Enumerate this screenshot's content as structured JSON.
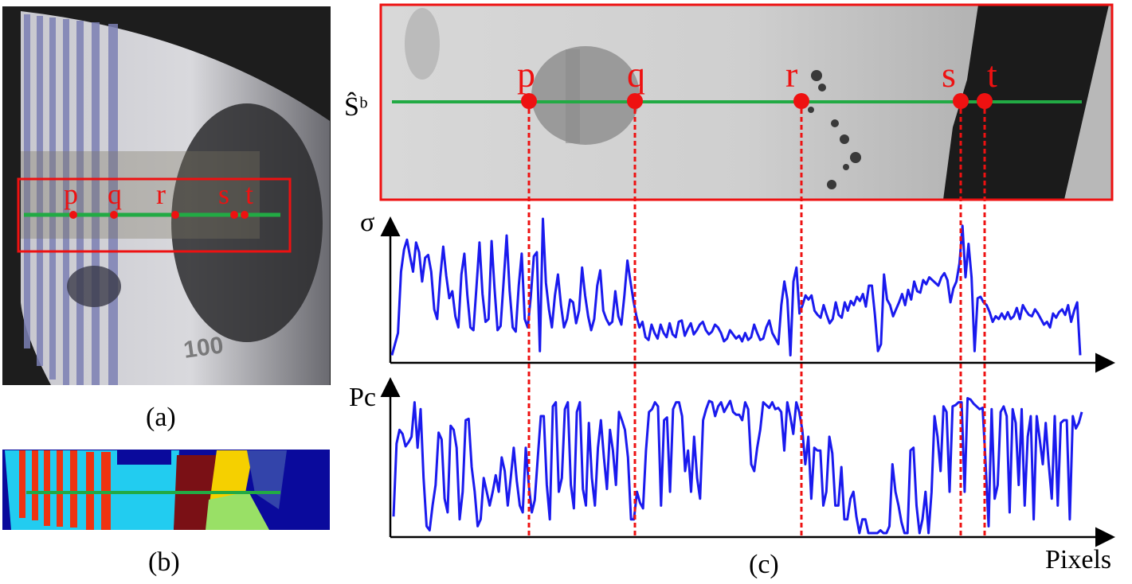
{
  "captions": {
    "a": "(a)",
    "b": "(b)",
    "c": "(c)"
  },
  "panel_a": {
    "number_text": "100",
    "points": [
      "p",
      "q",
      "r",
      "s",
      "t"
    ]
  },
  "panel_c": {
    "image_label": "Ŝᵇ",
    "points": [
      "p",
      "q",
      "r",
      "s",
      "t"
    ],
    "sigma_label": "σ",
    "pc_label": "Pc",
    "x_axis_label": "Pixels"
  },
  "colors": {
    "scanline": "#22aa44",
    "marker": "#ee1111",
    "curve": "#1a1aee",
    "box": "#ee1111"
  },
  "chart_data": [
    {
      "type": "line",
      "ylabel": "σ",
      "xlabel": "Pixels",
      "markers": [
        "p",
        "q",
        "r",
        "s",
        "t"
      ],
      "series": [
        {
          "values": [
            0.02,
            0.1,
            0.18,
            0.62,
            0.78,
            0.85,
            0.73,
            0.62,
            0.83,
            0.76,
            0.55,
            0.72,
            0.74,
            0.62,
            0.35,
            0.28,
            0.58,
            0.8,
            0.59,
            0.43,
            0.48,
            0.3,
            0.22,
            0.6,
            0.75,
            0.45,
            0.22,
            0.2,
            0.51,
            0.83,
            0.46,
            0.26,
            0.28,
            0.84,
            0.5,
            0.2,
            0.23,
            0.55,
            0.88,
            0.48,
            0.22,
            0.19,
            0.52,
            0.75,
            0.28,
            0.22,
            0.44,
            0.73,
            0.76,
            0.05,
            1.0,
            0.54,
            0.35,
            0.22,
            0.45,
            0.6,
            0.38,
            0.22,
            0.28,
            0.42,
            0.4,
            0.25,
            0.34,
            0.65,
            0.45,
            0.3,
            0.2,
            0.28,
            0.52,
            0.63,
            0.34,
            0.28,
            0.24,
            0.26,
            0.48,
            0.3,
            0.24,
            0.45,
            0.7,
            0.55,
            0.41,
            0.3,
            0.22,
            0.26,
            0.15,
            0.13,
            0.24,
            0.18,
            0.14,
            0.24,
            0.18,
            0.15,
            0.25,
            0.17,
            0.15,
            0.26,
            0.27,
            0.16,
            0.21,
            0.25,
            0.17,
            0.2,
            0.24,
            0.26,
            0.2,
            0.17,
            0.19,
            0.24,
            0.22,
            0.18,
            0.12,
            0.14,
            0.2,
            0.17,
            0.14,
            0.16,
            0.12,
            0.18,
            0.13,
            0.15,
            0.24,
            0.18,
            0.13,
            0.14,
            0.22,
            0.27,
            0.18,
            0.14,
            0.1,
            0.38,
            0.55,
            0.42,
            0.02,
            0.55,
            0.65,
            0.32,
            0.38,
            0.45,
            0.42,
            0.45,
            0.34,
            0.31,
            0.29,
            0.38,
            0.31,
            0.25,
            0.28,
            0.4,
            0.31,
            0.29,
            0.4,
            0.34,
            0.41,
            0.38,
            0.44,
            0.41,
            0.46,
            0.37,
            0.52,
            0.52,
            0.31,
            0.05,
            0.1,
            0.6,
            0.42,
            0.38,
            0.3,
            0.35,
            0.4,
            0.46,
            0.38,
            0.49,
            0.42,
            0.55,
            0.48,
            0.47,
            0.56,
            0.53,
            0.58,
            0.56,
            0.54,
            0.52,
            0.58,
            0.61,
            0.56,
            0.4,
            0.5,
            0.55,
            0.68,
            0.95,
            0.58,
            0.82,
            0.58,
            0.05,
            0.43,
            0.44,
            0.4,
            0.38,
            0.33,
            0.26,
            0.3,
            0.28,
            0.32,
            0.28,
            0.33,
            0.28,
            0.3,
            0.36,
            0.28,
            0.38,
            0.34,
            0.31,
            0.3,
            0.35,
            0.32,
            0.28,
            0.24,
            0.26,
            0.22,
            0.32,
            0.29,
            0.33,
            0.35,
            0.31,
            0.38,
            0.26,
            0.34,
            0.4,
            0.02
          ]
        }
      ]
    },
    {
      "type": "line",
      "ylabel": "Pc",
      "xlabel": "Pixels",
      "markers": [
        "p",
        "q",
        "r",
        "s",
        "t"
      ],
      "series": [
        {
          "values": [
            0.12,
            0.65,
            0.75,
            0.72,
            0.63,
            0.66,
            0.7,
            0.95,
            0.62,
            0.9,
            0.4,
            0.05,
            0.02,
            0.2,
            0.35,
            0.73,
            0.68,
            0.25,
            0.15,
            0.78,
            0.75,
            0.62,
            0.1,
            0.3,
            0.82,
            0.83,
            0.48,
            0.3,
            0.05,
            0.1,
            0.4,
            0.3,
            0.2,
            0.3,
            0.42,
            0.3,
            0.55,
            0.45,
            0.2,
            0.4,
            0.62,
            0.38,
            0.2,
            0.15,
            0.62,
            0.35,
            0.15,
            0.24,
            0.55,
            0.85,
            0.85,
            0.35,
            0.1,
            0.92,
            0.95,
            0.3,
            0.4,
            0.9,
            0.95,
            0.35,
            0.18,
            0.88,
            0.95,
            0.32,
            0.2,
            0.8,
            0.4,
            0.2,
            0.62,
            0.82,
            0.55,
            0.32,
            0.75,
            0.6,
            0.35,
            0.88,
            0.82,
            0.75,
            0.55,
            0.1,
            0.1,
            0.3,
            0.22,
            0.18,
            0.6,
            0.88,
            0.9,
            0.95,
            0.92,
            0.2,
            0.82,
            0.84,
            0.3,
            0.9,
            0.95,
            0.95,
            0.85,
            0.45,
            0.6,
            0.3,
            0.7,
            0.4,
            0.25,
            0.82,
            0.9,
            0.96,
            0.95,
            0.85,
            0.92,
            0.95,
            0.88,
            0.92,
            0.96,
            0.88,
            0.86,
            0.86,
            0.82,
            0.95,
            0.9,
            0.5,
            0.45,
            0.62,
            0.75,
            0.95,
            0.93,
            0.91,
            0.95,
            0.9,
            0.91,
            0.88,
            0.6,
            0.95,
            0.85,
            0.72,
            0.95,
            0.88,
            0.75,
            0.5,
            0.7,
            0.25,
            0.62,
            0.6,
            0.6,
            0.2,
            0.3,
            0.7,
            0.58,
            0.2,
            0.2,
            0.48,
            0.1,
            0.1,
            0.25,
            0.3,
            0.12,
            0.0,
            0.1,
            0.1,
            0.0,
            0.0,
            0.0,
            0.0,
            0.02,
            0.0,
            0.0,
            0.05,
            0.5,
            0.3,
            0.2,
            0.08,
            0.0,
            0.0,
            0.6,
            0.62,
            0.2,
            0.0,
            0.1,
            0.3,
            0.0,
            0.3,
            0.85,
            0.7,
            0.45,
            0.92,
            0.88,
            0.3,
            0.92,
            0.93,
            0.95,
            0.95,
            0.3,
            0.98,
            0.97,
            0.94,
            0.92,
            0.9,
            0.91,
            0.5,
            0.05,
            0.9,
            0.25,
            0.35,
            0.88,
            0.92,
            0.85,
            0.15,
            0.9,
            0.8,
            0.35,
            0.9,
            0.2,
            0.7,
            0.85,
            0.1,
            0.85,
            0.68,
            0.5,
            0.8,
            0.5,
            0.25,
            0.85,
            0.2,
            0.8,
            0.82,
            0.82,
            0.1,
            0.85,
            0.76,
            0.8,
            0.88
          ]
        }
      ]
    }
  ]
}
